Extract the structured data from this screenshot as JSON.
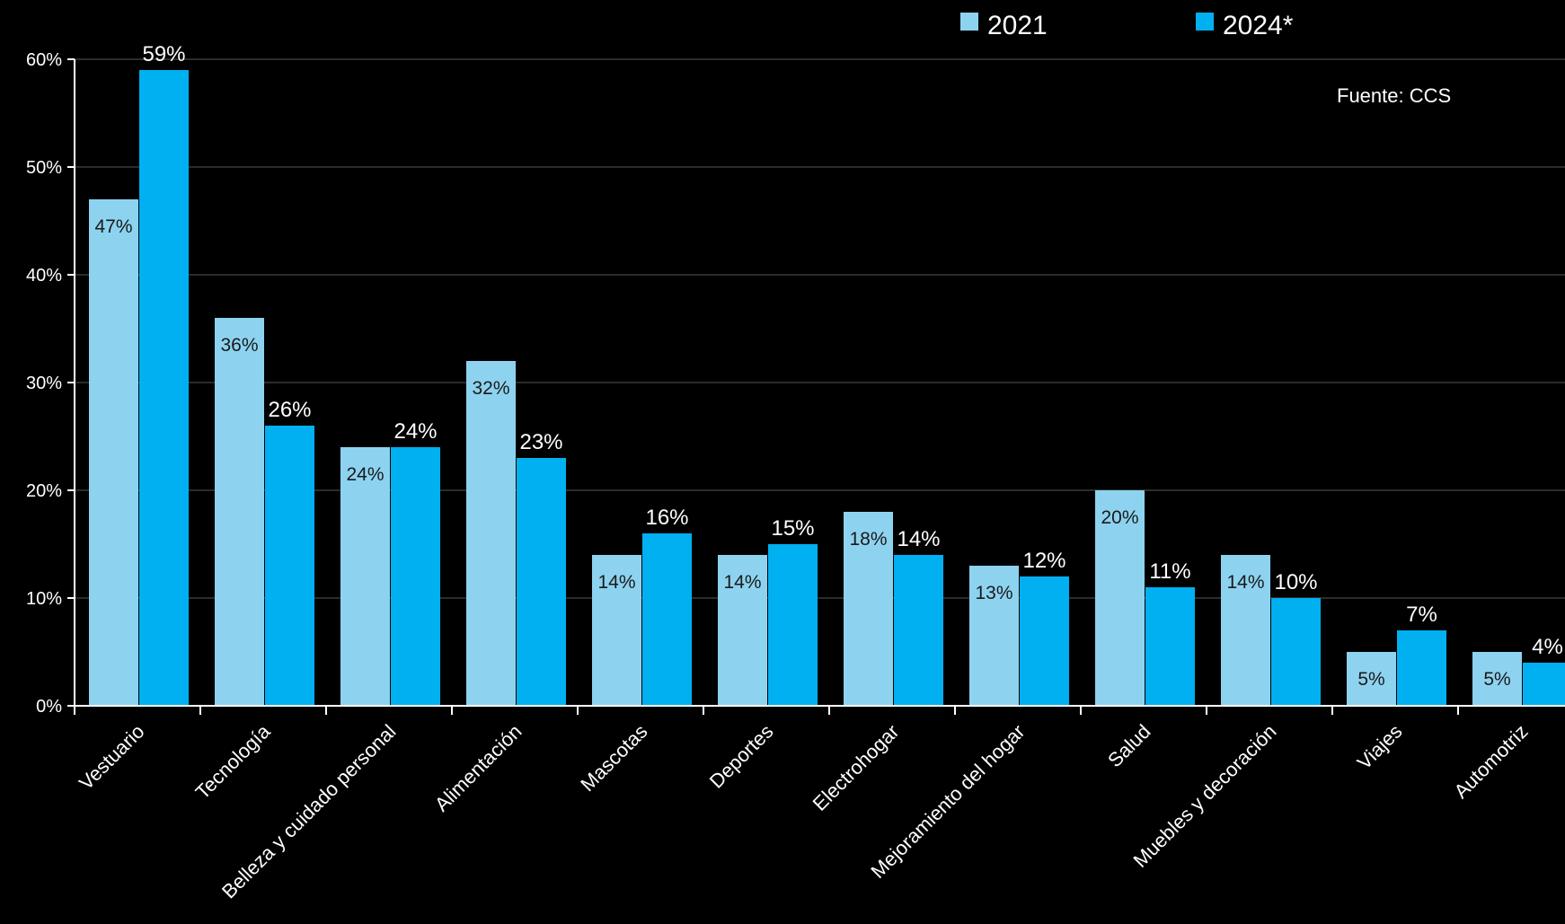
{
  "chart_data": {
    "type": "bar",
    "categories": [
      "Vestuario",
      "Tecnología",
      "Belleza y cuidado personal",
      "Alimentación",
      "Mascotas",
      "Deportes",
      "Electrohogar",
      "Mejoramiento del hogar",
      "Salud",
      "Muebles y decoración",
      "Viajes",
      "Automotriz"
    ],
    "series": [
      {
        "name": "2021",
        "color": "#8dd3f0",
        "values": [
          47,
          36,
          24,
          32,
          14,
          14,
          18,
          13,
          20,
          14,
          5,
          5
        ],
        "labels": [
          "47%",
          "36%",
          "24%",
          "32%",
          "14%",
          "14%",
          "18%",
          "13%",
          "20%",
          "14%",
          "5%",
          "5%"
        ]
      },
      {
        "name": "2024*",
        "color": "#00b0f0",
        "values": [
          59,
          26,
          24,
          23,
          16,
          15,
          14,
          12,
          11,
          10,
          7,
          4
        ],
        "labels": [
          "59%",
          "26%",
          "24%",
          "23%",
          "16%",
          "15%",
          "14%",
          "12%",
          "11%",
          "10%",
          "7%",
          "4%"
        ]
      }
    ],
    "y_ticks": [
      "0%",
      "10%",
      "20%",
      "30%",
      "40%",
      "50%",
      "60%"
    ],
    "ylim": [
      0,
      60
    ],
    "grid": true,
    "legend_position": "top-right",
    "source": "Fuente: CCS",
    "title": "",
    "xlabel": "",
    "ylabel": ""
  }
}
